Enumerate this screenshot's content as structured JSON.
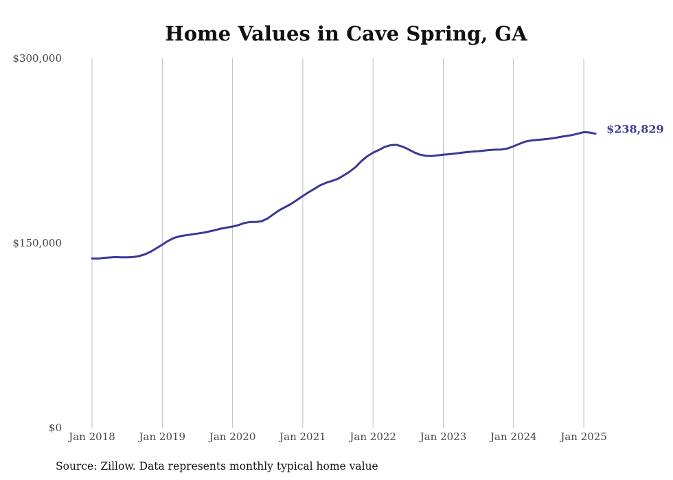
{
  "chart_data": {
    "type": "line",
    "title": "Home Values in Cave Spring, GA",
    "xlabel": "",
    "ylabel": "",
    "ylim": [
      0,
      300000
    ],
    "y_ticks": [
      {
        "value": 0,
        "label": "$0"
      },
      {
        "value": 150000,
        "label": "$150,000"
      },
      {
        "value": 300000,
        "label": "$300,000"
      }
    ],
    "x_ticks": [
      {
        "date": "2018-01",
        "label": "Jan 2018"
      },
      {
        "date": "2019-01",
        "label": "Jan 2019"
      },
      {
        "date": "2020-01",
        "label": "Jan 2020"
      },
      {
        "date": "2021-01",
        "label": "Jan 2021"
      },
      {
        "date": "2022-01",
        "label": "Jan 2022"
      },
      {
        "date": "2023-01",
        "label": "Jan 2023"
      },
      {
        "date": "2024-01",
        "label": "Jan 2024"
      },
      {
        "date": "2025-01",
        "label": "Jan 2025"
      }
    ],
    "grid": "vertical",
    "end_label": "$238,829",
    "source": "Source: Zillow. Data represents monthly typical home value",
    "series_color": "#3b3897",
    "series": [
      {
        "points": [
          [
            "2018-01",
            137500
          ],
          [
            "2018-02",
            137400
          ],
          [
            "2018-03",
            138000
          ],
          [
            "2018-04",
            138300
          ],
          [
            "2018-05",
            138600
          ],
          [
            "2018-06",
            138400
          ],
          [
            "2018-07",
            138400
          ],
          [
            "2018-08",
            138600
          ],
          [
            "2018-09",
            139400
          ],
          [
            "2018-10",
            140800
          ],
          [
            "2018-11",
            143000
          ],
          [
            "2018-12",
            145800
          ],
          [
            "2019-01",
            148700
          ],
          [
            "2019-02",
            151800
          ],
          [
            "2019-03",
            154200
          ],
          [
            "2019-04",
            155600
          ],
          [
            "2019-05",
            156300
          ],
          [
            "2019-06",
            157000
          ],
          [
            "2019-07",
            157700
          ],
          [
            "2019-08",
            158400
          ],
          [
            "2019-09",
            159400
          ],
          [
            "2019-10",
            160500
          ],
          [
            "2019-11",
            161700
          ],
          [
            "2019-12",
            162600
          ],
          [
            "2020-01",
            163400
          ],
          [
            "2020-02",
            164600
          ],
          [
            "2020-03",
            166300
          ],
          [
            "2020-04",
            167100
          ],
          [
            "2020-05",
            167200
          ],
          [
            "2020-06",
            167800
          ],
          [
            "2020-07",
            170000
          ],
          [
            "2020-08",
            173500
          ],
          [
            "2020-09",
            176700
          ],
          [
            "2020-10",
            179300
          ],
          [
            "2020-11",
            181800
          ],
          [
            "2020-12",
            185000
          ],
          [
            "2021-01",
            188200
          ],
          [
            "2021-02",
            191300
          ],
          [
            "2021-03",
            194100
          ],
          [
            "2021-04",
            197000
          ],
          [
            "2021-05",
            199000
          ],
          [
            "2021-06",
            200500
          ],
          [
            "2021-07",
            202200
          ],
          [
            "2021-08",
            205000
          ],
          [
            "2021-09",
            208000
          ],
          [
            "2021-10",
            211700
          ],
          [
            "2021-11",
            216500
          ],
          [
            "2021-12",
            220500
          ],
          [
            "2022-01",
            223400
          ],
          [
            "2022-02",
            225600
          ],
          [
            "2022-03",
            228100
          ],
          [
            "2022-04",
            229500
          ],
          [
            "2022-05",
            229800
          ],
          [
            "2022-06",
            228400
          ],
          [
            "2022-07",
            226200
          ],
          [
            "2022-08",
            223700
          ],
          [
            "2022-09",
            221800
          ],
          [
            "2022-10",
            220900
          ],
          [
            "2022-11",
            220700
          ],
          [
            "2022-12",
            221200
          ],
          [
            "2023-01",
            221800
          ],
          [
            "2023-02",
            222200
          ],
          [
            "2023-03",
            222700
          ],
          [
            "2023-04",
            223300
          ],
          [
            "2023-05",
            223900
          ],
          [
            "2023-06",
            224300
          ],
          [
            "2023-07",
            224600
          ],
          [
            "2023-08",
            225100
          ],
          [
            "2023-09",
            225600
          ],
          [
            "2023-10",
            225900
          ],
          [
            "2023-11",
            226000
          ],
          [
            "2023-12",
            226900
          ],
          [
            "2024-01",
            228600
          ],
          [
            "2024-02",
            230600
          ],
          [
            "2024-03",
            232400
          ],
          [
            "2024-04",
            233300
          ],
          [
            "2024-05",
            233800
          ],
          [
            "2024-06",
            234200
          ],
          [
            "2024-07",
            234700
          ],
          [
            "2024-08",
            235300
          ],
          [
            "2024-09",
            236200
          ],
          [
            "2024-10",
            237000
          ],
          [
            "2024-11",
            237700
          ],
          [
            "2024-12",
            238900
          ],
          [
            "2025-01",
            240100
          ],
          [
            "2025-02",
            239800
          ],
          [
            "2025-03",
            238829
          ]
        ]
      }
    ]
  }
}
